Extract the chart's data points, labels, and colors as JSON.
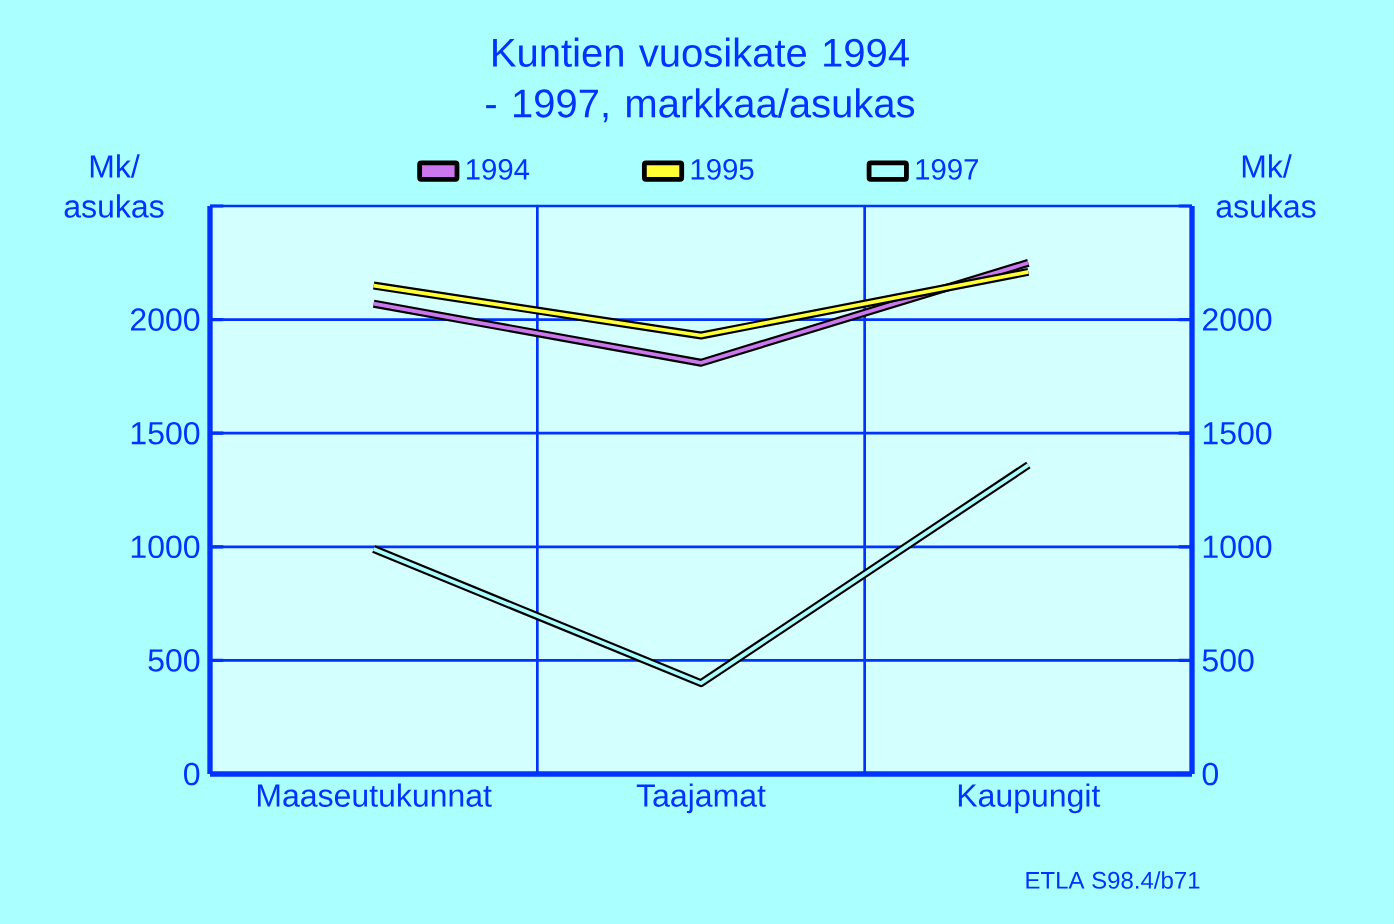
{
  "chart_data": {
    "type": "line",
    "title": "Kuntien vuosikate 1994 - 1997, markkaa/asukas",
    "ylabel": "Mk/ asukas",
    "y2label": "Mk/ asukas",
    "categories": [
      "Maaseutukunnat",
      "Taajamat",
      "Kaupungit"
    ],
    "series": [
      {
        "name": "1994",
        "color": "#cc77ee",
        "values": [
          2070,
          1810,
          2250
        ]
      },
      {
        "name": "1995",
        "color": "#ffff33",
        "values": [
          2150,
          1930,
          2210
        ]
      },
      {
        "name": "1997",
        "color": "#aaffff",
        "values": [
          990,
          400,
          1360
        ]
      }
    ],
    "ylim": [
      0,
      2500
    ],
    "yticks": [
      0,
      500,
      1000,
      1500,
      2000,
      {
        "value": 2500,
        "label": null
      }
    ],
    "y2lim": [
      0,
      2500
    ],
    "y2ticks": [
      0,
      500,
      1000,
      1500,
      2000,
      {
        "value": 2500,
        "label": null
      }
    ],
    "grid": true,
    "legend": "top",
    "marker": "none",
    "line_style": "solid",
    "annotations": [
      "ETLA S98.4/b71"
    ]
  }
}
